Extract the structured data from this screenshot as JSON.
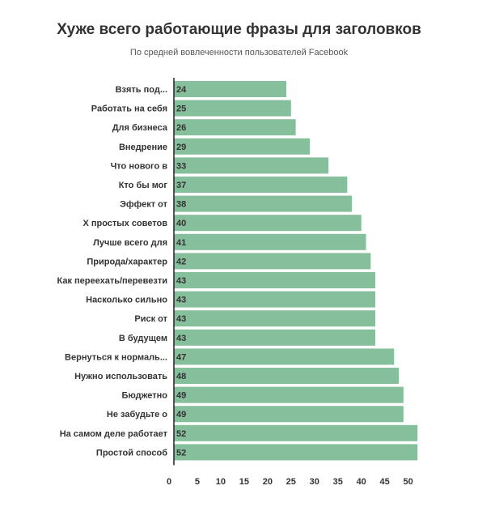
{
  "chart_data": {
    "type": "bar",
    "orientation": "horizontal",
    "title": "Хуже всего работающие фразы для заголовков",
    "subtitle": "По средней вовлеченности пользователей Facebook",
    "categories": [
      "Взять под...",
      "Работать на себя",
      "Для бизнеса",
      "Внедрение",
      "Что нового в",
      "Кто бы мог",
      "Эффект от",
      "Х простых советов",
      "Лучше всего для",
      "Природа/характер",
      "Как переехать/перевезти",
      "Насколько сильно",
      "Риск от",
      "В будущем",
      "Вернуться к нормаль...",
      "Нужно использовать",
      "Бюджетно",
      "Не забудьте о",
      "На самом деле работает",
      "Простой способ"
    ],
    "values": [
      24,
      25,
      26,
      29,
      33,
      37,
      38,
      40,
      41,
      42,
      43,
      43,
      43,
      43,
      47,
      48,
      49,
      49,
      52,
      52
    ],
    "xlim": [
      0,
      53
    ],
    "xticks": [
      0,
      5,
      10,
      15,
      20,
      25,
      30,
      35,
      40,
      45,
      50
    ],
    "grid": false,
    "bar_color": "#85bf9b",
    "text_color": "#333333"
  }
}
